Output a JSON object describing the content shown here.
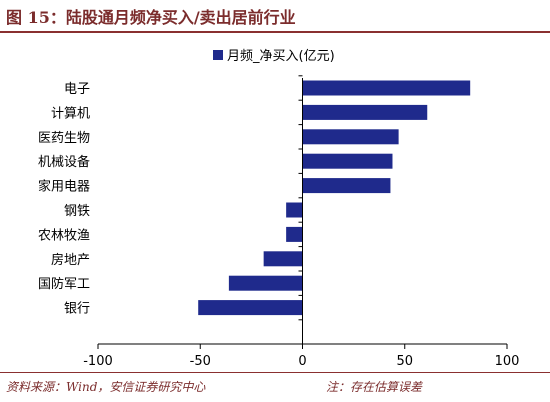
{
  "figure_title": "图 15：陆股通月频净买入/卖出居前行业",
  "source_text": "资料来源：Wind，安信证券研究中心",
  "note_text": "注：存在估算误差",
  "chart_data": {
    "type": "bar",
    "orientation": "horizontal",
    "categories": [
      "电子",
      "计算机",
      "医药生物",
      "机械设备",
      "家用电器",
      "钢铁",
      "农林牧渔",
      "房地产",
      "国防军工",
      "银行"
    ],
    "series": [
      {
        "name": "月频_净买入(亿元)",
        "values": [
          82,
          61,
          47,
          44,
          43,
          -8,
          -8,
          -19,
          -36,
          -51
        ]
      }
    ],
    "xlim": [
      -100,
      100
    ],
    "xticks": [
      -100,
      -50,
      0,
      50,
      100
    ],
    "grid": false,
    "legend_position": "top-center",
    "bar_color": "#1f2a8c",
    "axis_color": "#000000"
  }
}
